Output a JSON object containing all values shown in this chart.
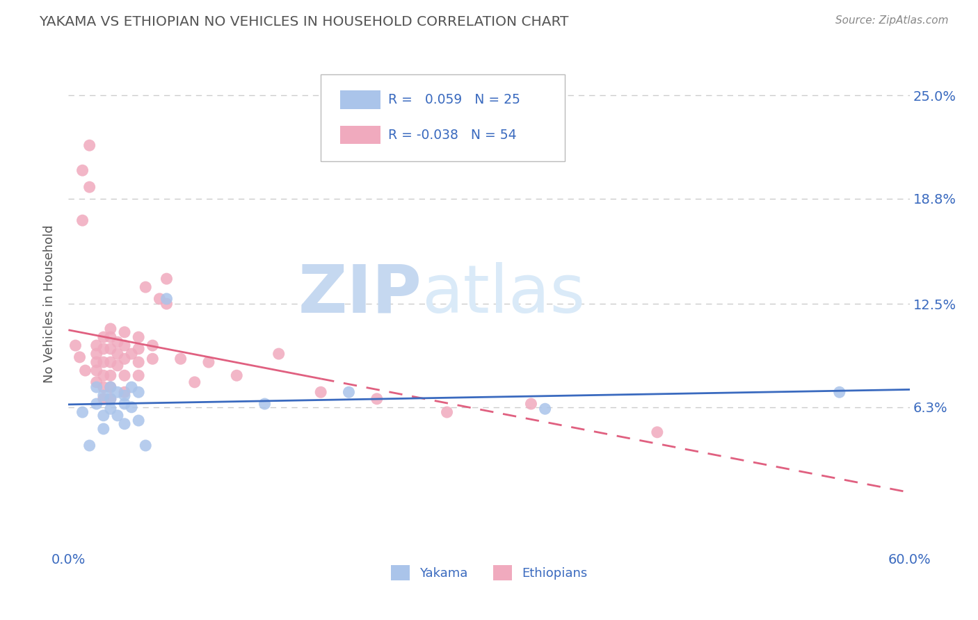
{
  "title": "YAKAMA VS ETHIOPIAN NO VEHICLES IN HOUSEHOLD CORRELATION CHART",
  "source_text": "Source: ZipAtlas.com",
  "ylabel": "No Vehicles in Household",
  "xlim": [
    0.0,
    0.6
  ],
  "ylim": [
    -0.02,
    0.27
  ],
  "ytick_positions": [
    0.063,
    0.125,
    0.188,
    0.25
  ],
  "ytick_labels": [
    "6.3%",
    "12.5%",
    "18.8%",
    "25.0%"
  ],
  "legend_r_yakama": " 0.059",
  "legend_n_yakama": "25",
  "legend_r_ethiopian": "-0.038",
  "legend_n_ethiopian": "54",
  "legend_label_yakama": "Yakama",
  "legend_label_ethiopian": "Ethiopians",
  "yakama_color": "#aac4ea",
  "ethiopian_color": "#f0aabe",
  "yakama_line_color": "#3a6abf",
  "ethiopian_line_color": "#e06080",
  "watermark_zip": "ZIP",
  "watermark_atlas": "atlas",
  "watermark_color": "#ccddf5",
  "background_color": "#ffffff",
  "grid_color": "#cccccc",
  "title_color": "#555555",
  "legend_text_color": "#3a6abf",
  "legend_r_label_color": "#333333",
  "yakama_scatter_x": [
    0.01,
    0.015,
    0.02,
    0.02,
    0.025,
    0.025,
    0.025,
    0.03,
    0.03,
    0.03,
    0.035,
    0.035,
    0.04,
    0.04,
    0.04,
    0.045,
    0.045,
    0.05,
    0.05,
    0.055,
    0.07,
    0.14,
    0.2,
    0.34,
    0.55
  ],
  "yakama_scatter_y": [
    0.06,
    0.04,
    0.065,
    0.075,
    0.058,
    0.05,
    0.07,
    0.068,
    0.075,
    0.062,
    0.072,
    0.058,
    0.065,
    0.053,
    0.07,
    0.075,
    0.063,
    0.072,
    0.055,
    0.04,
    0.128,
    0.065,
    0.072,
    0.062,
    0.072
  ],
  "ethiopian_scatter_x": [
    0.005,
    0.008,
    0.01,
    0.01,
    0.012,
    0.015,
    0.015,
    0.02,
    0.02,
    0.02,
    0.02,
    0.02,
    0.025,
    0.025,
    0.025,
    0.025,
    0.025,
    0.025,
    0.03,
    0.03,
    0.03,
    0.03,
    0.03,
    0.03,
    0.03,
    0.035,
    0.035,
    0.035,
    0.04,
    0.04,
    0.04,
    0.04,
    0.04,
    0.045,
    0.05,
    0.05,
    0.05,
    0.05,
    0.055,
    0.06,
    0.06,
    0.065,
    0.07,
    0.07,
    0.08,
    0.09,
    0.1,
    0.12,
    0.15,
    0.18,
    0.22,
    0.27,
    0.33,
    0.42
  ],
  "ethiopian_scatter_y": [
    0.1,
    0.093,
    0.205,
    0.175,
    0.085,
    0.22,
    0.195,
    0.1,
    0.095,
    0.09,
    0.085,
    0.078,
    0.105,
    0.098,
    0.09,
    0.082,
    0.075,
    0.068,
    0.11,
    0.105,
    0.098,
    0.09,
    0.082,
    0.075,
    0.068,
    0.102,
    0.095,
    0.088,
    0.108,
    0.1,
    0.092,
    0.082,
    0.072,
    0.095,
    0.105,
    0.098,
    0.09,
    0.082,
    0.135,
    0.1,
    0.092,
    0.128,
    0.14,
    0.125,
    0.092,
    0.078,
    0.09,
    0.082,
    0.095,
    0.072,
    0.068,
    0.06,
    0.065,
    0.048
  ]
}
